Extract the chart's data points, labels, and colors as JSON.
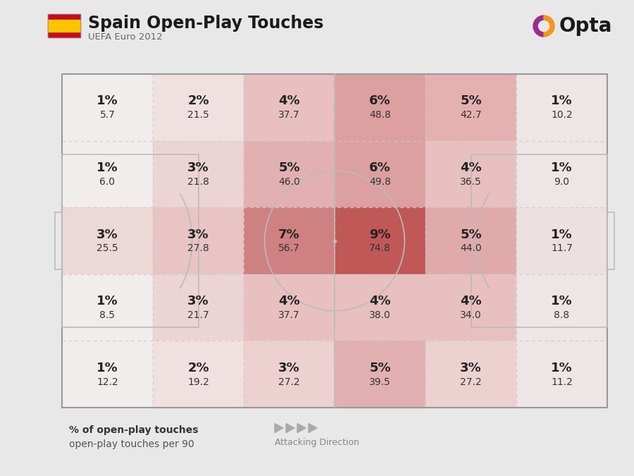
{
  "title": "Spain Open-Play Touches",
  "subtitle": "UEFA Euro 2012",
  "bg_color": "#e8e8e8",
  "percentages": [
    [
      1,
      2,
      4,
      6,
      5,
      1
    ],
    [
      1,
      3,
      5,
      6,
      4,
      1
    ],
    [
      3,
      3,
      7,
      9,
      5,
      1
    ],
    [
      1,
      3,
      4,
      4,
      4,
      1
    ],
    [
      1,
      2,
      3,
      5,
      3,
      1
    ]
  ],
  "values": [
    [
      5.7,
      21.5,
      37.7,
      48.8,
      42.7,
      10.2
    ],
    [
      6.0,
      21.8,
      46.0,
      49.8,
      36.5,
      9.0
    ],
    [
      25.5,
      27.8,
      56.7,
      74.8,
      44.0,
      11.7
    ],
    [
      8.5,
      21.7,
      37.7,
      38.0,
      34.0,
      8.8
    ],
    [
      12.2,
      19.2,
      27.2,
      39.5,
      27.2,
      11.2
    ]
  ],
  "cell_colors": [
    [
      "#f2eded",
      "#f0e0e0",
      "#e8c0c0",
      "#dda0a0",
      "#e4b0b0",
      "#eee6e6"
    ],
    [
      "#f2eded",
      "#ecd4d4",
      "#e2b0b0",
      "#dda0a0",
      "#e8c0c0",
      "#eee6e6"
    ],
    [
      "#edd8d8",
      "#e8c4c4",
      "#cf8080",
      "#c05858",
      "#e0aaaa",
      "#ece0e0"
    ],
    [
      "#f2eded",
      "#ecd4d4",
      "#e8c0c0",
      "#e8c0c0",
      "#e8c0c0",
      "#eee6e6"
    ],
    [
      "#f2eded",
      "#f0e0e0",
      "#edd0d0",
      "#e2b0b0",
      "#edd0d0",
      "#eee6e6"
    ]
  ],
  "legend_bold": "% of open-play touches",
  "legend_light": "open-play touches per 90",
  "attacking_text": "Attacking Direction",
  "line_color": "#bbbbbb",
  "text_dark": "#1a1a1a",
  "text_med": "#444444",
  "text_light": "#888888"
}
